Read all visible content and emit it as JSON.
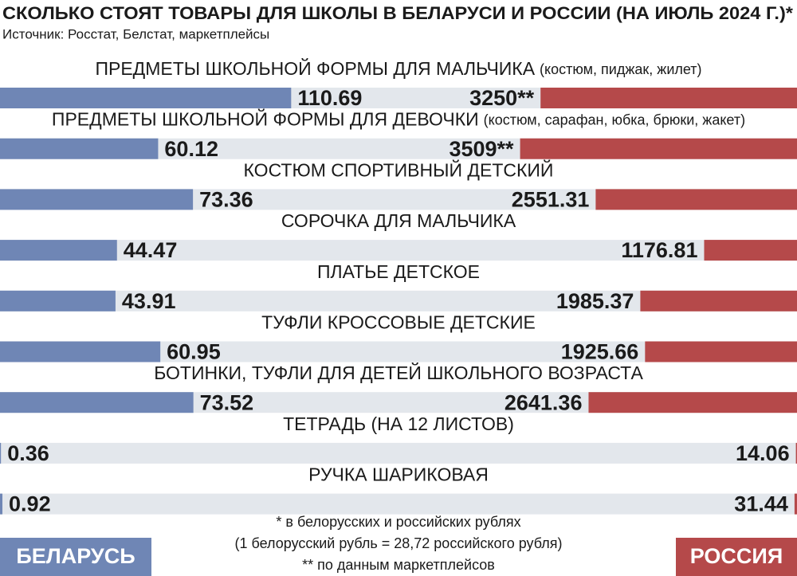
{
  "chart_data": {
    "type": "butterfly",
    "title": "СКОЛЬКО СТОЯТ ТОВАРЫ ДЛЯ ШКОЛЫ В БЕЛАРУСИ И РОССИИ (НА ИЮЛЬ 2024 Г.)*",
    "subtitle": "Источник: Росстат, Белстат, маркетплейсы",
    "categories": [
      "ПРЕДМЕТЫ ШКОЛЬНОЙ ФОРМЫ ДЛЯ МАЛЬЧИКА",
      "ПРЕДМЕТЫ ШКОЛЬНОЙ ФОРМЫ ДЛЯ ДЕВОЧКИ",
      "КОСТЮМ СПОРТИВНЫЙ ДЕТСКИЙ",
      "СОРОЧКА ДЛЯ МАЛЬЧИКА",
      "ПЛАТЬЕ ДЕТСКОЕ",
      "ТУФЛИ КРОССОВЫЕ ДЕТСКИЕ",
      "БОТИНКИ, ТУФЛИ ДЛЯ ДЕТЕЙ ШКОЛЬНОГО ВОЗРАСТА",
      "ТЕТРАДЬ (НА 12 ЛИСТОВ)",
      "РУЧКА ШАРИКОВАЯ"
    ],
    "category_notes": [
      "(костюм, пиджак, жилет)",
      "(костюм, сарафан, юбка, брюки, жакет)",
      null,
      null,
      null,
      null,
      null,
      null,
      null
    ],
    "series": [
      {
        "name": "БЕЛАРУСЬ",
        "color": "#6f86b5",
        "side": "left",
        "xlim": [
          0,
          303
        ],
        "values": [
          110.69,
          60.12,
          73.36,
          44.47,
          43.91,
          60.95,
          73.52,
          0.36,
          0.92
        ]
      },
      {
        "name": "РОССИЯ",
        "color": "#b5494a",
        "side": "right",
        "xlim": [
          0,
          10100
        ],
        "values": [
          3250,
          3509,
          2551.31,
          1176.81,
          1985.37,
          1925.66,
          2641.36,
          14.06,
          31.44
        ],
        "value_labels": [
          "3250**",
          "3509**",
          null,
          null,
          null,
          null,
          null,
          null,
          null
        ]
      }
    ],
    "notes": [
      "* в белорусских и российских рублях",
      "(1 белорусский рубль = 28,72 российского рубля)",
      "** по данным маркетплейсов"
    ]
  }
}
